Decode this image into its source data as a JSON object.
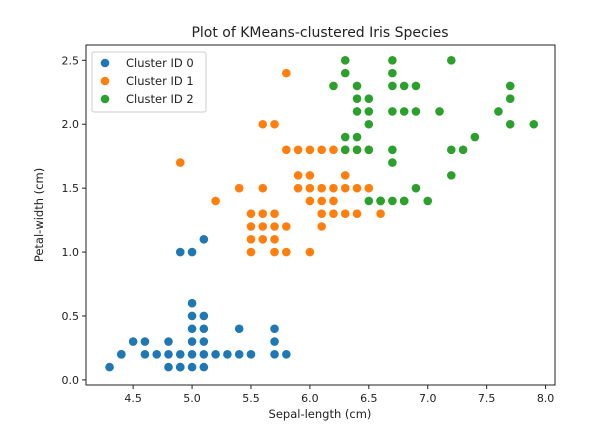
{
  "chart_data": {
    "type": "scatter",
    "title": "Plot of KMeans-clustered Iris Species",
    "xlabel": "Sepal-length (cm)",
    "ylabel": "Petal-width (cm)",
    "xlim": [
      4.1,
      8.08
    ],
    "ylim": [
      -0.04,
      2.62
    ],
    "xticks": [
      "4.5",
      "5.0",
      "5.5",
      "6.0",
      "6.5",
      "7.0",
      "7.5",
      "8.0"
    ],
    "yticks": [
      "0.0",
      "0.5",
      "1.0",
      "1.5",
      "2.0",
      "2.5"
    ],
    "grid": false,
    "legend": "top-left",
    "series": [
      {
        "name": "Cluster ID 0",
        "color": "#1f77b4",
        "x": [
          4.3,
          4.4,
          4.4,
          4.5,
          4.6,
          4.6,
          4.7,
          4.8,
          4.8,
          4.8,
          4.9,
          4.9,
          4.9,
          5.0,
          5.0,
          5.0,
          5.0,
          5.0,
          5.0,
          5.1,
          5.1,
          5.1,
          5.1,
          5.1,
          5.2,
          5.3,
          5.4,
          5.4,
          5.5,
          5.7,
          5.7,
          5.7,
          5.8,
          4.9,
          5.0,
          5.1
        ],
        "y": [
          0.1,
          0.2,
          0.2,
          0.3,
          0.2,
          0.3,
          0.2,
          0.1,
          0.2,
          0.3,
          0.1,
          0.2,
          1.0,
          0.2,
          0.3,
          0.4,
          0.5,
          0.6,
          1.0,
          0.2,
          0.3,
          0.4,
          0.5,
          1.1,
          0.2,
          0.2,
          0.2,
          0.4,
          0.2,
          0.2,
          0.3,
          0.4,
          0.2,
          0.1,
          0.1,
          0.1
        ]
      },
      {
        "name": "Cluster ID 1",
        "color": "#ff7f0e",
        "x": [
          4.9,
          5.2,
          5.4,
          5.5,
          5.5,
          5.5,
          5.5,
          5.6,
          5.6,
          5.6,
          5.6,
          5.6,
          5.7,
          5.7,
          5.7,
          5.7,
          5.7,
          5.8,
          5.8,
          5.8,
          5.8,
          5.9,
          5.9,
          5.9,
          6.0,
          6.0,
          6.0,
          6.0,
          6.0,
          6.1,
          6.1,
          6.1,
          6.1,
          6.1,
          6.2,
          6.2,
          6.2,
          6.2,
          6.3,
          6.3,
          6.3,
          6.3,
          6.4,
          6.4,
          6.4,
          6.5,
          6.5,
          6.6,
          6.6
        ],
        "y": [
          1.7,
          1.4,
          1.5,
          1.0,
          1.1,
          1.2,
          1.3,
          1.1,
          1.3,
          1.5,
          2.0,
          1.2,
          1.0,
          1.2,
          1.3,
          2.0,
          1.1,
          1.0,
          1.2,
          1.8,
          2.4,
          1.5,
          1.6,
          1.8,
          1.0,
          1.5,
          1.6,
          1.8,
          1.4,
          1.2,
          1.3,
          1.4,
          1.5,
          1.8,
          1.3,
          1.5,
          1.8,
          1.4,
          1.3,
          1.5,
          1.6,
          1.8,
          1.3,
          1.5,
          1.8,
          1.5,
          1.8,
          1.3,
          1.4
        ]
      },
      {
        "name": "Cluster ID 2",
        "color": "#2ca02c",
        "x": [
          6.2,
          6.3,
          6.3,
          6.3,
          6.3,
          6.4,
          6.4,
          6.4,
          6.4,
          6.4,
          6.5,
          6.5,
          6.5,
          6.5,
          6.6,
          6.7,
          6.7,
          6.7,
          6.7,
          6.7,
          6.7,
          6.8,
          6.8,
          6.8,
          6.9,
          6.9,
          6.9,
          7.0,
          7.1,
          7.2,
          7.2,
          7.2,
          7.3,
          7.4,
          7.6,
          7.7,
          7.7,
          7.7,
          7.9,
          6.5,
          6.6,
          6.7,
          6.8
        ],
        "y": [
          2.3,
          2.5,
          2.4,
          1.9,
          1.8,
          2.3,
          2.2,
          2.1,
          1.9,
          1.8,
          2.2,
          2.0,
          1.8,
          2.1,
          1.4,
          2.5,
          2.3,
          2.1,
          1.8,
          1.7,
          2.4,
          2.3,
          2.1,
          1.4,
          2.3,
          2.1,
          1.5,
          1.4,
          2.1,
          2.5,
          1.8,
          1.6,
          1.8,
          1.9,
          2.1,
          2.3,
          2.2,
          2.0,
          2.0,
          1.4,
          1.4,
          1.4,
          1.4
        ]
      }
    ]
  }
}
